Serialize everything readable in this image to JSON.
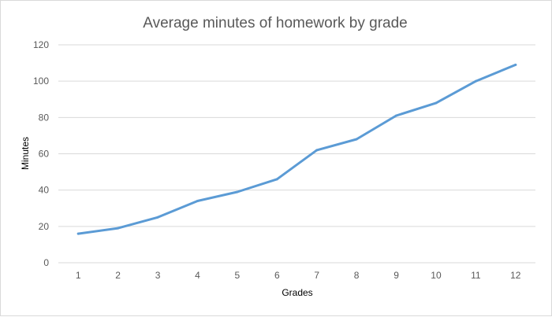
{
  "colors": {
    "series": "#5b9bd5"
  },
  "chart_data": {
    "type": "line",
    "title": "Average minutes of homework by grade",
    "xlabel": "Grades",
    "ylabel": "Minutes",
    "categories": [
      "1",
      "2",
      "3",
      "4",
      "5",
      "6",
      "7",
      "8",
      "9",
      "10",
      "11",
      "12"
    ],
    "values": [
      16,
      19,
      25,
      34,
      39,
      46,
      62,
      68,
      81,
      88,
      100,
      109
    ],
    "ylim": [
      0,
      120
    ],
    "yticks": [
      "0",
      "20",
      "40",
      "60",
      "80",
      "100",
      "120"
    ],
    "grid": true,
    "legend": "none"
  }
}
